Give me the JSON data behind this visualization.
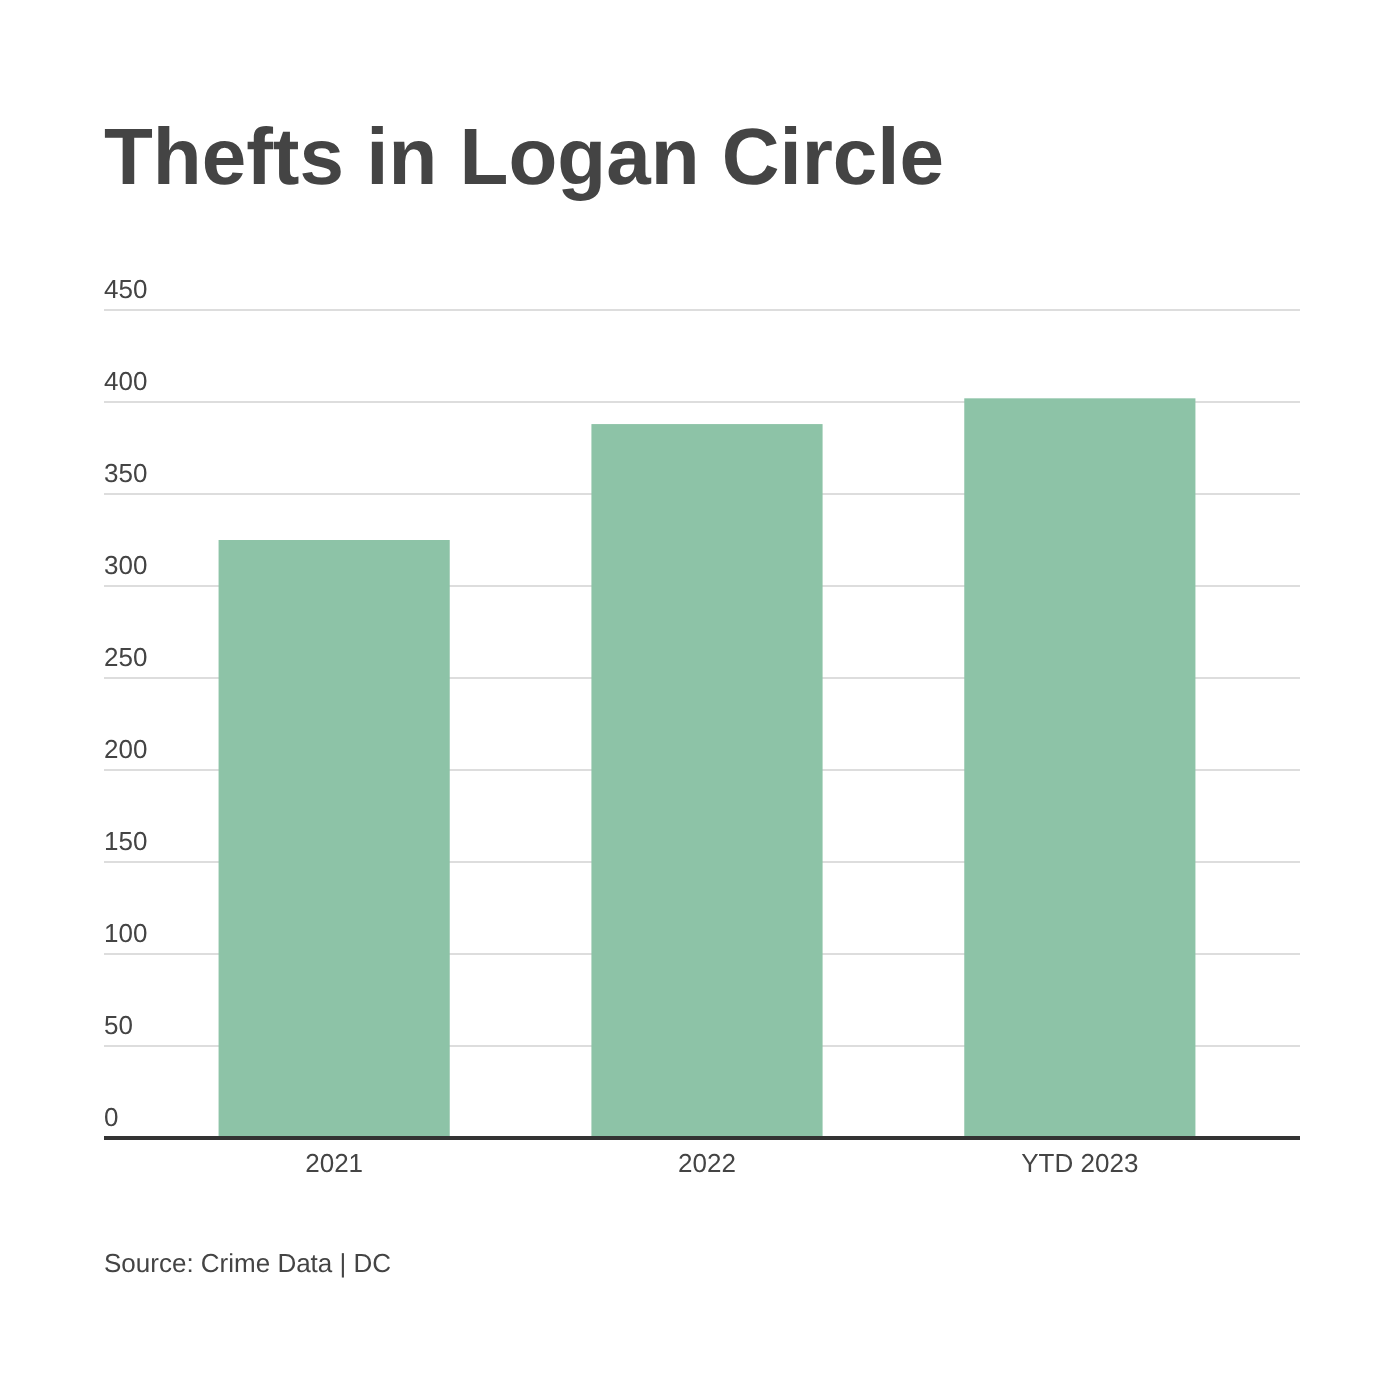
{
  "chart_data": {
    "type": "bar",
    "title": "Thefts in Logan Circle",
    "categories": [
      "2021",
      "2022",
      "YTD 2023"
    ],
    "values": [
      325,
      388,
      402
    ],
    "color": "#8dc3a7",
    "ylim": [
      0,
      450
    ],
    "yticks": [
      0,
      50,
      100,
      150,
      200,
      250,
      300,
      350,
      400,
      450
    ],
    "grid": "y",
    "annotations": [
      "Source: Crime Data | DC"
    ]
  }
}
